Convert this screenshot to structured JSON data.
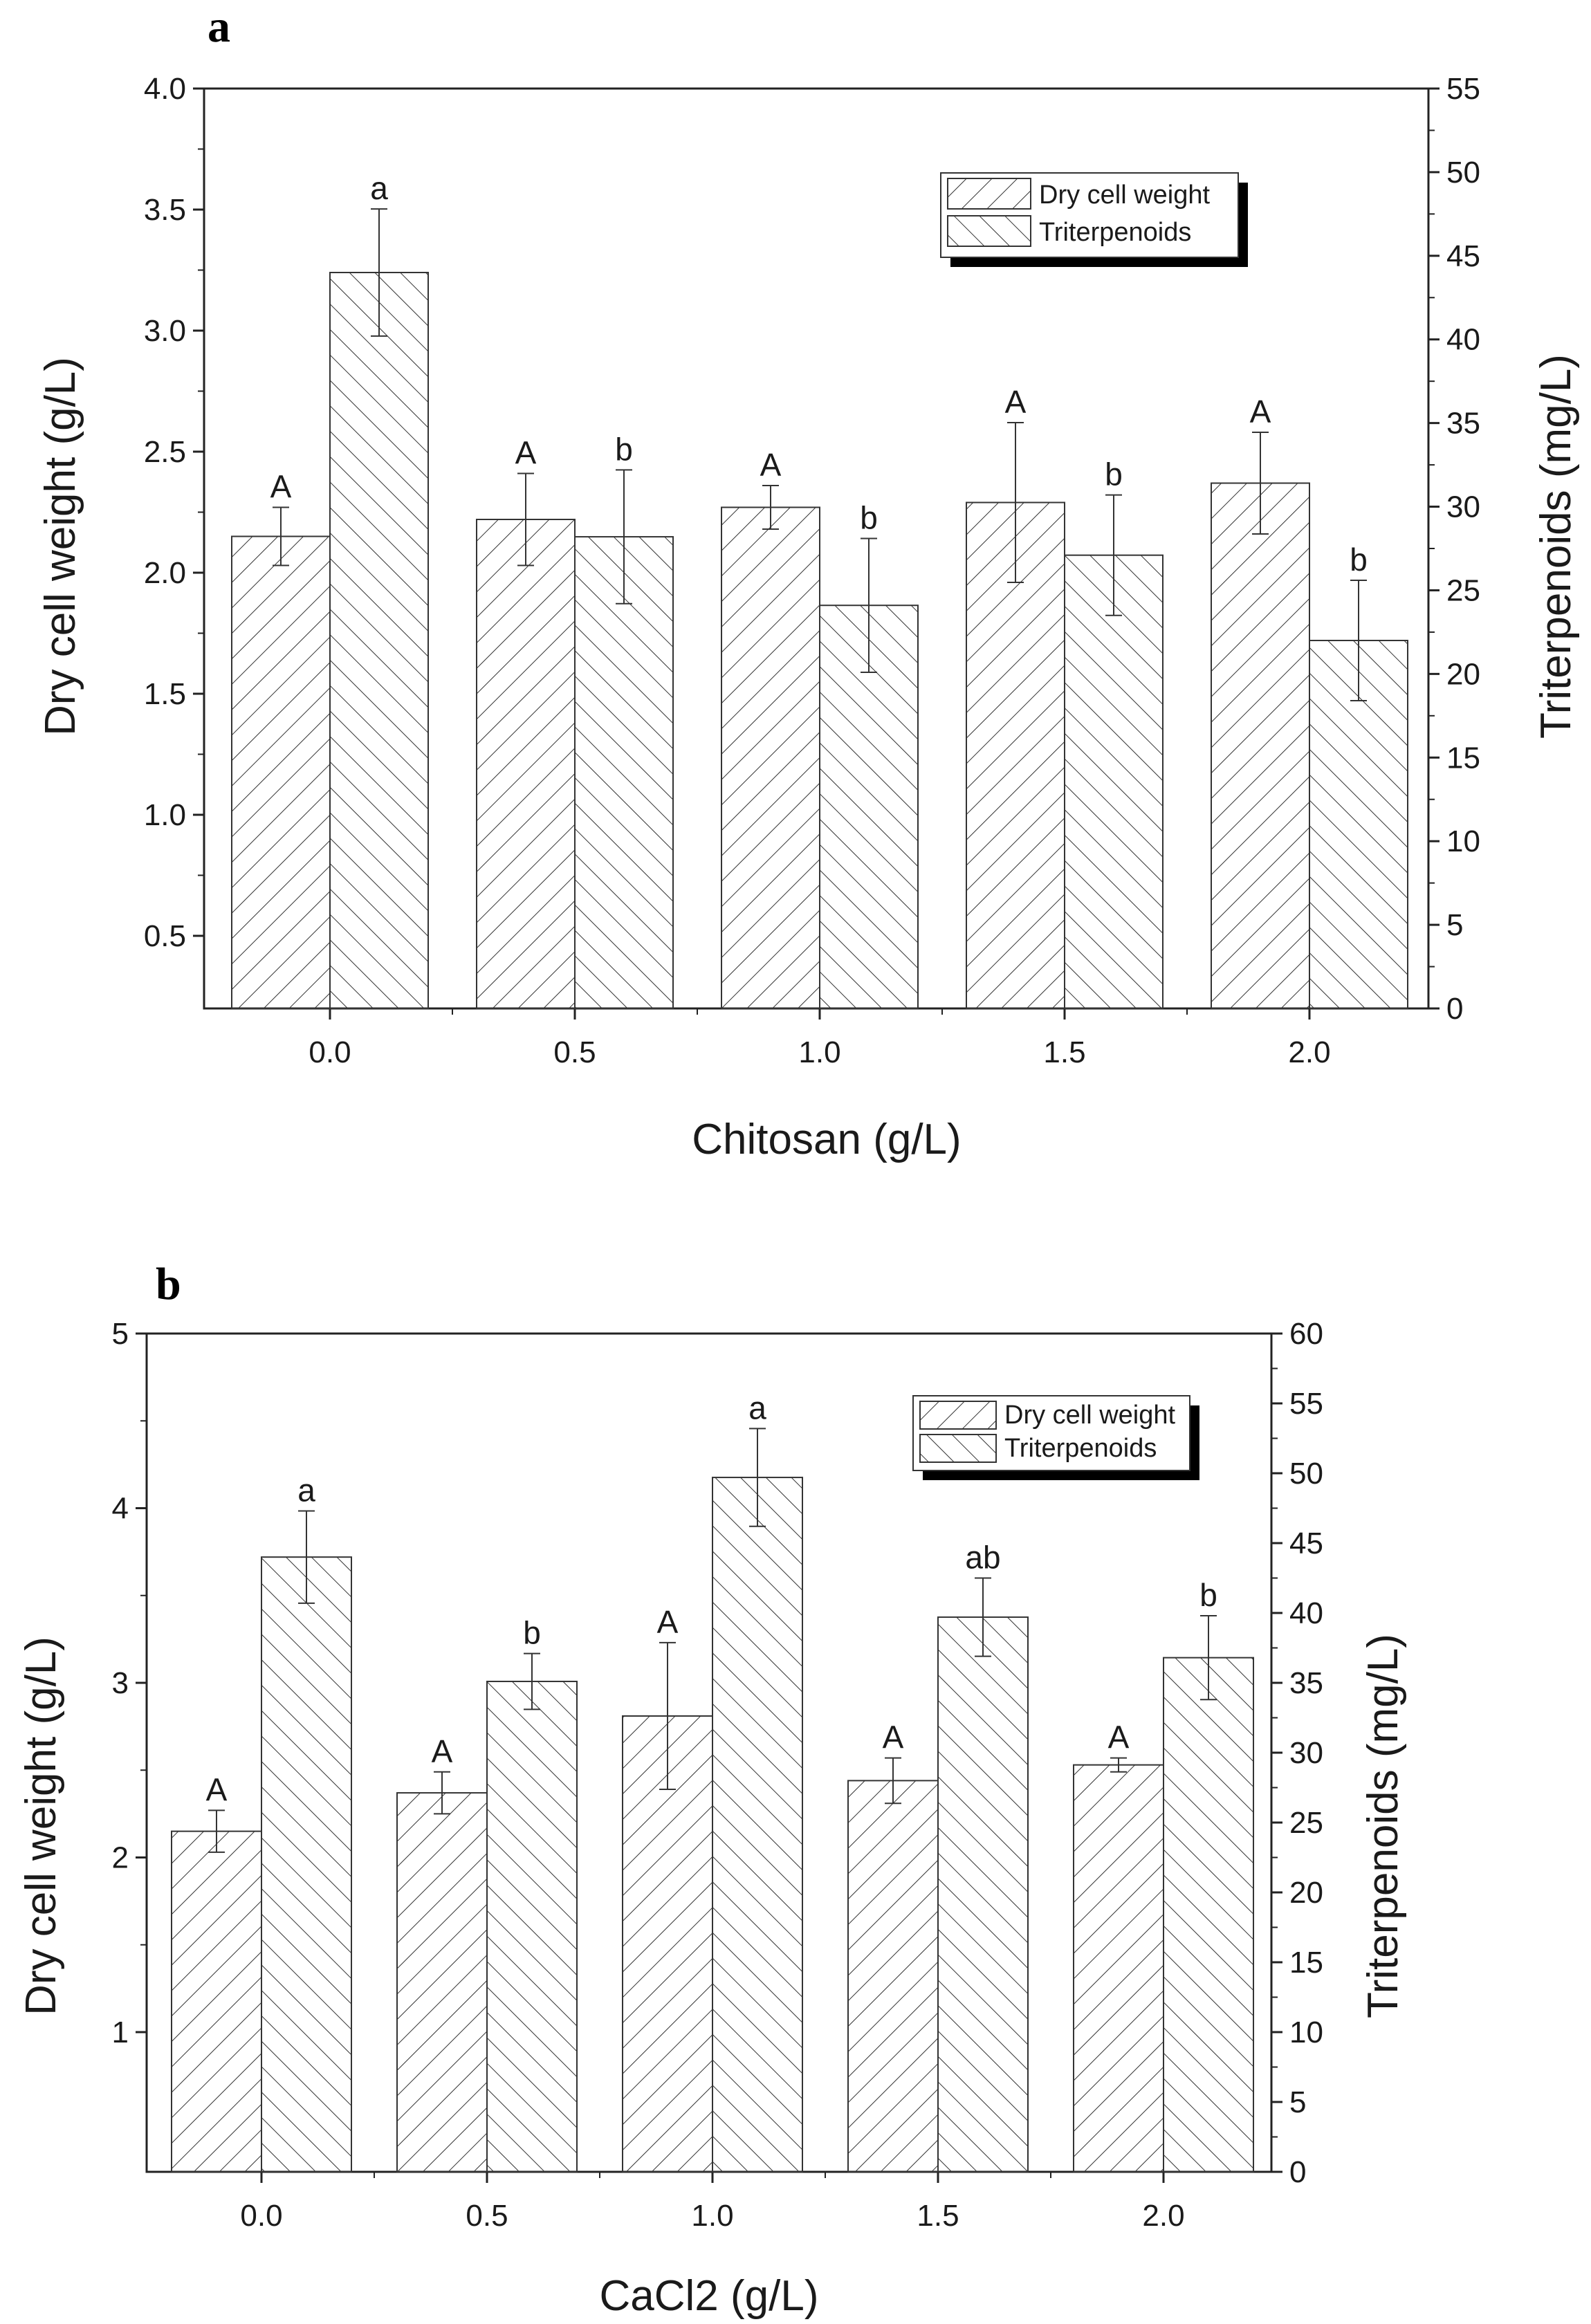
{
  "chart_data": [
    {
      "type": "bar",
      "panel": "a",
      "title": "",
      "xlabel": "Chitosan (g/L)",
      "ylabel": "Dry cell weight (g/L)",
      "y2label": "Triterpenoids (mg/L)",
      "categories": [
        "0.0",
        "0.5",
        "1.0",
        "1.5",
        "2.0"
      ],
      "ylim": [
        0.2,
        4.0
      ],
      "y2lim": [
        0,
        55
      ],
      "yticks": [
        "0.5",
        "1.0",
        "1.5",
        "2.0",
        "2.5",
        "3.0",
        "3.5",
        "4.0"
      ],
      "y2ticks": [
        "0",
        "5",
        "10",
        "15",
        "20",
        "25",
        "30",
        "35",
        "40",
        "45",
        "50",
        "55"
      ],
      "legend_position": "top-right",
      "series": [
        {
          "name": "Dry cell weight",
          "axis": "left",
          "values": [
            2.15,
            2.22,
            2.27,
            2.29,
            2.37
          ],
          "errors": [
            0.12,
            0.19,
            0.09,
            0.33,
            0.21
          ],
          "labels": [
            "A",
            "A",
            "A",
            "A",
            "A"
          ]
        },
        {
          "name": "Triterpenoids",
          "axis": "right",
          "values": [
            44.0,
            28.2,
            24.1,
            27.1,
            22.0
          ],
          "errors": [
            3.8,
            4.0,
            4.0,
            3.6,
            3.6
          ],
          "labels": [
            "a",
            "b",
            "b",
            "b",
            "b"
          ]
        }
      ]
    },
    {
      "type": "bar",
      "panel": "b",
      "title": "",
      "xlabel": "CaCl2 (g/L)",
      "ylabel": "Dry cell weight (g/L)",
      "y2label": "Triterpenoids (mg/L)",
      "categories": [
        "0.0",
        "0.5",
        "1.0",
        "1.5",
        "2.0"
      ],
      "ylim": [
        0.2,
        5.0
      ],
      "y2lim": [
        0,
        60
      ],
      "yticks": [
        "1",
        "2",
        "3",
        "4",
        "5"
      ],
      "y2ticks": [
        "0",
        "5",
        "10",
        "15",
        "20",
        "25",
        "30",
        "35",
        "40",
        "45",
        "50",
        "55",
        "60"
      ],
      "legend_position": "top-right",
      "series": [
        {
          "name": "Dry cell weight",
          "axis": "left",
          "values": [
            2.15,
            2.37,
            2.81,
            2.44,
            2.53
          ],
          "errors": [
            0.12,
            0.12,
            0.42,
            0.13,
            0.04
          ],
          "labels": [
            "A",
            "A",
            "A",
            "A",
            "A"
          ]
        },
        {
          "name": "Triterpenoids",
          "axis": "right",
          "values": [
            44.0,
            35.1,
            49.7,
            39.7,
            36.8
          ],
          "errors": [
            3.3,
            2.0,
            3.5,
            2.8,
            3.0
          ],
          "labels": [
            "a",
            "b",
            "a",
            "ab",
            "b"
          ]
        }
      ]
    }
  ]
}
